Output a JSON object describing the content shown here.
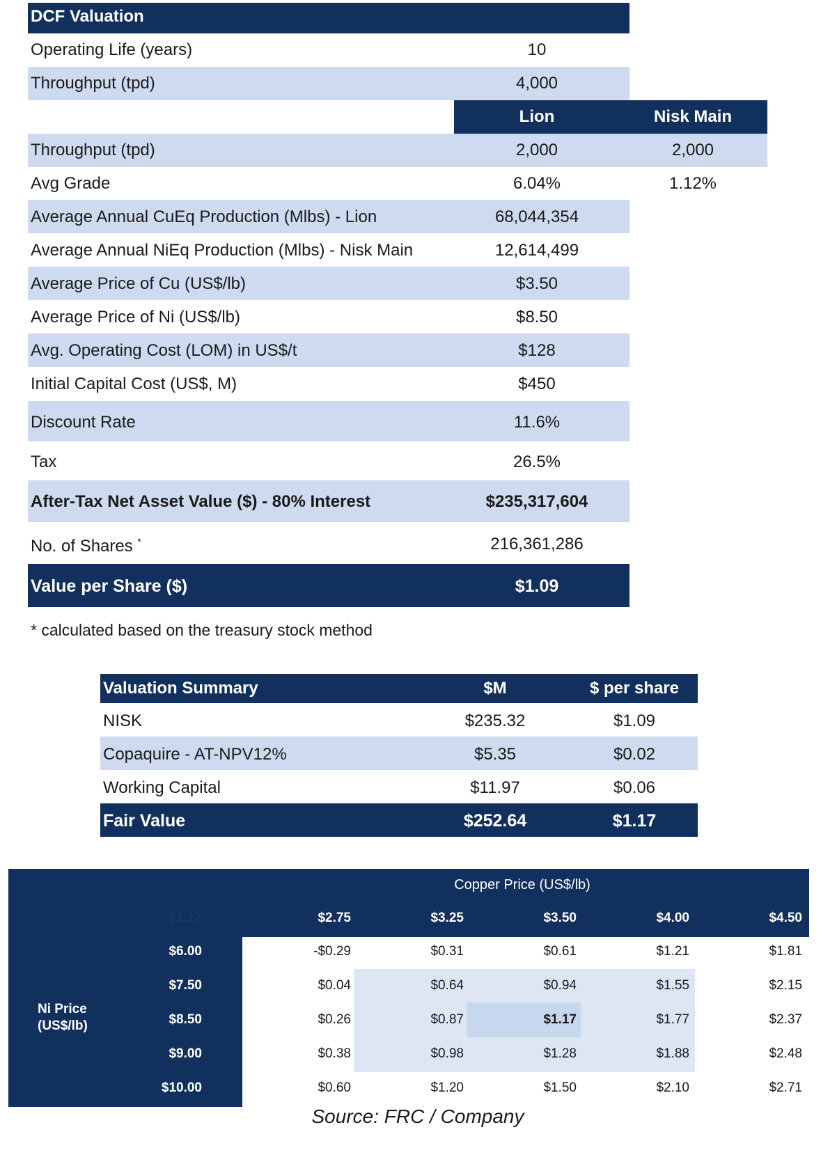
{
  "dcf": {
    "title": "DCF Valuation",
    "operating_life": {
      "label": "Operating Life (years)",
      "value": "10"
    },
    "throughput_total": {
      "label": "Throughput (tpd)",
      "value": "4,000"
    },
    "col_headers": [
      "Lion",
      "Nisk Main"
    ],
    "rows": [
      {
        "label": "Throughput (tpd)",
        "v1": "2,000",
        "v2": "2,000"
      },
      {
        "label": "Avg Grade",
        "v1": "6.04%",
        "v2": "1.12%"
      },
      {
        "label": "Average Annual CuEq Production (Mlbs) - Lion",
        "v1": "68,044,354"
      },
      {
        "label": "Average Annual NiEq Production (Mlbs) - Nisk Main",
        "v1": "12,614,499"
      },
      {
        "label": "Average Price of Cu (US$/lb)",
        "v1": "$3.50"
      },
      {
        "label": "Average Price of Ni (US$/lb)",
        "v1": "$8.50"
      },
      {
        "label": "Avg. Operating Cost (LOM) in US$/t",
        "v1": "$128"
      },
      {
        "label": "Initial Capital Cost (US$, M)",
        "v1": "$450"
      },
      {
        "label": "Discount Rate",
        "v1": "11.6%"
      },
      {
        "label": "Tax",
        "v1": "26.5%"
      }
    ],
    "nav": {
      "label": "After-Tax Net Asset Value ($) - 80% Interest",
      "value": "$235,317,604"
    },
    "shares": {
      "label": "No. of Shares",
      "marker": "*",
      "value": "216,361,286"
    },
    "value_per_share": {
      "label": "Value per Share ($)",
      "value": "$1.09"
    },
    "footnote": "* calculated based on the treasury stock method"
  },
  "valuation_summary": {
    "headers": [
      "Valuation Summary",
      "$M",
      "$ per share"
    ],
    "rows": [
      {
        "label": "NISK",
        "m": "$235.32",
        "ps": "$1.09"
      },
      {
        "label": "Copaquire - AT-NPV12%",
        "m": "$5.35",
        "ps": "$0.02"
      },
      {
        "label": "Working Capital",
        "m": "$11.97",
        "ps": "$0.06"
      }
    ],
    "total": {
      "label": "Fair Value",
      "m": "$252.64",
      "ps": "$1.17"
    }
  },
  "sensitivity": {
    "col_title": "Copper Price (US$/lb)",
    "corner": "$1.17",
    "row_title": "Ni Price (US$/lb)",
    "copper_prices": [
      "$2.75",
      "$3.25",
      "$3.50",
      "$4.00",
      "$4.50"
    ],
    "ni_prices": [
      "$6.00",
      "$7.50",
      "$8.50",
      "$9.00",
      "$10.00"
    ],
    "values": [
      [
        "-$0.29",
        "$0.31",
        "$0.61",
        "$1.21",
        "$1.81"
      ],
      [
        "$0.04",
        "$0.64",
        "$0.94",
        "$1.55",
        "$2.15"
      ],
      [
        "$0.26",
        "$0.87",
        "$1.17",
        "$1.77",
        "$2.37"
      ],
      [
        "$0.38",
        "$0.98",
        "$1.28",
        "$1.88",
        "$2.48"
      ],
      [
        "$0.60",
        "$1.20",
        "$1.50",
        "$2.10",
        "$2.71"
      ]
    ]
  },
  "source": "Source: FRC / Company"
}
